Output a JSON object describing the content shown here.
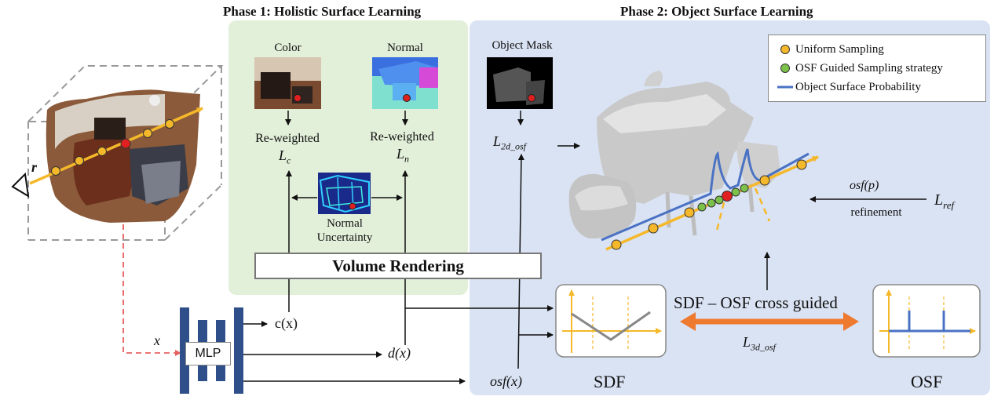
{
  "phase1": {
    "title": "Phase 1: Holistic Surface Learning"
  },
  "phase2": {
    "title": "Phase 2: Object Surface Learning"
  },
  "images": {
    "color": "Color",
    "normal": "Normal",
    "object_mask": "Object Mask",
    "normal_uncertainty_line1": "Normal",
    "normal_uncertainty_line2": "Uncertainty"
  },
  "losses": {
    "color_label": "Re-weighted",
    "color_symbol": "L",
    "color_sub": "c",
    "normal_label": "Re-weighted",
    "normal_symbol": "L",
    "normal_sub": "n",
    "osf2d_symbol": "L",
    "osf2d_sub": "2d_osf",
    "osf3d_symbol": "L",
    "osf3d_sub": "3d_osf",
    "ref_symbol": "L",
    "ref_sub": "ref"
  },
  "volume_rendering": "Volume Rendering",
  "mlp": "MLP",
  "outputs": {
    "color": "c(x)",
    "depth": "d(x)",
    "osf": "osf(x)",
    "x_input": "x",
    "ray": "r"
  },
  "guidance": {
    "sdf_osf": "SDF – OSF  cross guided",
    "osf_p": "osf(p)",
    "refinement": "refinement"
  },
  "plots": {
    "sdf_title": "SDF",
    "osf_title": "OSF"
  },
  "legend": {
    "items": [
      {
        "label": "Uniform Sampling",
        "color": "#f5b82a"
      },
      {
        "label": "OSF Guided Sampling  strategy",
        "color": "#7cc24a"
      },
      {
        "label": "Object Surface Probability",
        "color": "#4a72c4"
      }
    ]
  },
  "colors": {
    "phase1_bg": "#e2efd9",
    "phase2_bg": "#dae3f3",
    "ray": "#f5b82a",
    "mlp": "#2f4f8a",
    "arrow_orange": "#ee7a30",
    "sample_red": "#e02020",
    "plot_line": "#888888"
  }
}
